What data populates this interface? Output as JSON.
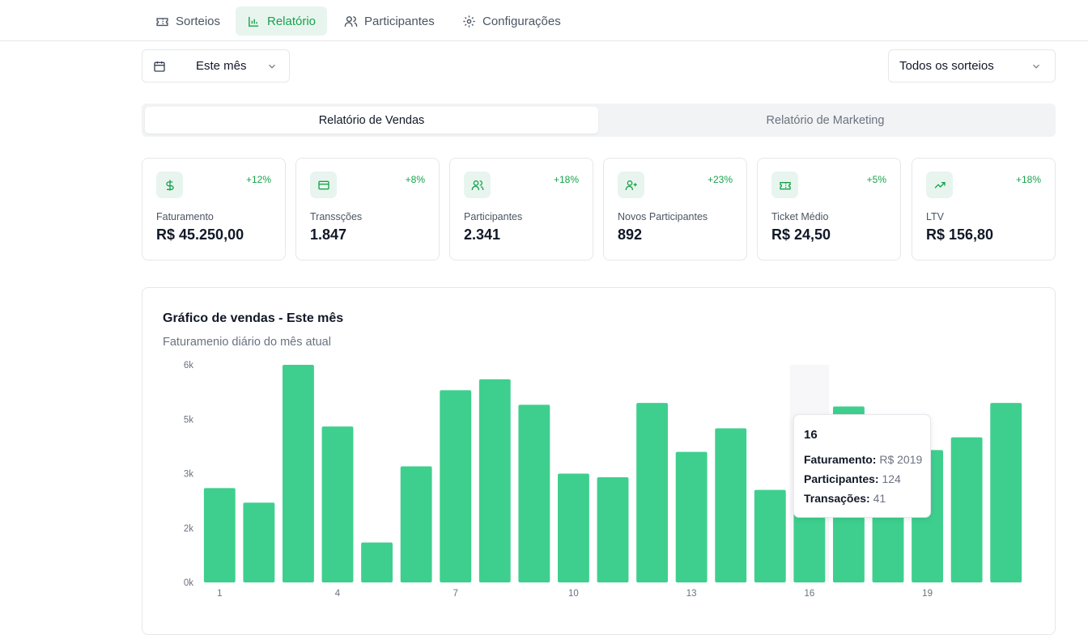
{
  "nav": {
    "tabs": [
      {
        "label": "Sorteios",
        "icon": "ticket-icon",
        "active": false
      },
      {
        "label": "Relatório",
        "icon": "bar-chart-icon",
        "active": true
      },
      {
        "label": "Participantes",
        "icon": "users-icon",
        "active": false
      },
      {
        "label": "Configurações",
        "icon": "gear-icon",
        "active": false
      }
    ]
  },
  "filters": {
    "period": "Este mês",
    "raffle": "Todos os sorteios"
  },
  "report_tabs": {
    "sales": "Relatório de Vendas",
    "marketing": "Relatório de Marketing"
  },
  "kpis": [
    {
      "label": "Faturamento",
      "value": "R$ 45.250,00",
      "change": "+12%",
      "icon": "dollar-icon"
    },
    {
      "label": "Transsções",
      "value": "1.847",
      "change": "+8%",
      "icon": "credit-card-icon"
    },
    {
      "label": "Participantes",
      "value": "2.341",
      "change": "+18%",
      "icon": "users-icon"
    },
    {
      "label": "Novos Participantes",
      "value": "892",
      "change": "+23%",
      "icon": "user-plus-icon"
    },
    {
      "label": "Ticket Médio",
      "value": "R$ 24,50",
      "change": "+5%",
      "icon": "ticket-icon"
    },
    {
      "label": "LTV",
      "value": "R$ 156,80",
      "change": "+18%",
      "icon": "trending-up-icon"
    }
  ],
  "colors": {
    "accent": "#3ecf8e",
    "accent_text": "#16a34a",
    "accent_bg": "#e8f5ef"
  },
  "chart": {
    "title": "Gráfico de vendas - Este mês",
    "subtitle": "Faturamenio diário do mês atual"
  },
  "tooltip": {
    "day": "16",
    "rows": [
      {
        "key": "Faturamento:",
        "val": "R$ 2019"
      },
      {
        "key": "Participantes:",
        "val": "124"
      },
      {
        "key": "Transações:",
        "val": "41"
      }
    ]
  },
  "chart_data": {
    "type": "bar",
    "categories": [
      "1",
      "2",
      "3",
      "4",
      "5",
      "6",
      "7",
      "8",
      "9",
      "10",
      "11",
      "12",
      "13",
      "14",
      "15",
      "16",
      "17",
      "18",
      "19",
      "20",
      "21"
    ],
    "x_tick_labels": [
      "1",
      "4",
      "7",
      "10",
      "13",
      "16",
      "19"
    ],
    "values": [
      2600,
      2200,
      6000,
      4300,
      1100,
      3200,
      5300,
      5600,
      4900,
      3000,
      2900,
      4950,
      3600,
      4250,
      2550,
      2019,
      4850,
      2050,
      3650,
      4000,
      4950
    ],
    "y_tick_labels": [
      "0k",
      "2k",
      "3k",
      "5k",
      "6k"
    ],
    "ylim": [
      0,
      6000
    ],
    "grid": false,
    "highlighted_category": "16"
  }
}
